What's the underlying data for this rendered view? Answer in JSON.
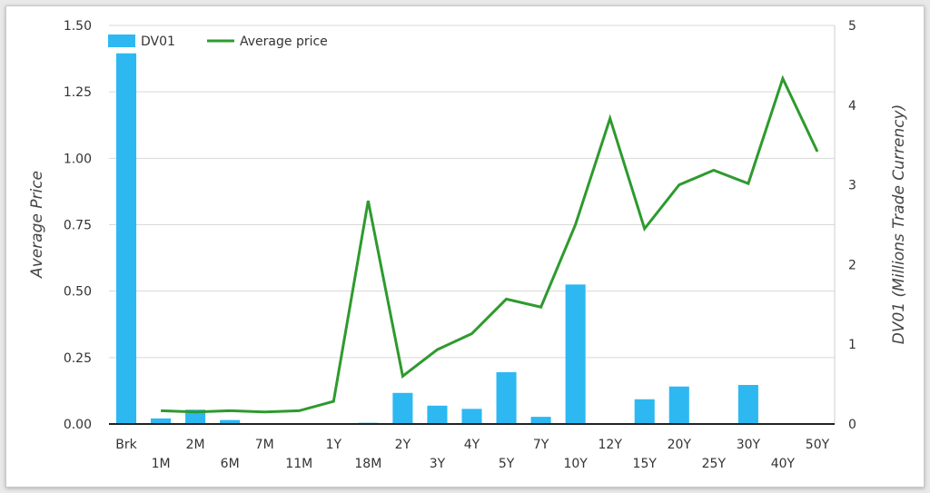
{
  "chart_data": {
    "type": "bar",
    "categories": [
      "Brk",
      "1M",
      "2M",
      "6M",
      "7M",
      "11M",
      "1Y",
      "18M",
      "2Y",
      "3Y",
      "4Y",
      "5Y",
      "7Y",
      "10Y",
      "12Y",
      "15Y",
      "20Y",
      "25Y",
      "30Y",
      "40Y",
      "50Y"
    ],
    "series": [
      {
        "name": "DV01",
        "type": "bar",
        "axis": "right",
        "color": "#2db8f1",
        "values": [
          4.65,
          0.07,
          0.18,
          0.05,
          0.0,
          0.005,
          0.0,
          0.015,
          0.39,
          0.23,
          0.19,
          0.65,
          0.09,
          1.75,
          0.0,
          0.31,
          0.47,
          0.0,
          0.49,
          0.0,
          0.0
        ]
      },
      {
        "name": "Average price",
        "type": "line",
        "axis": "left",
        "color": "#2e9a2e",
        "values": [
          null,
          0.05,
          0.045,
          0.05,
          0.045,
          0.05,
          0.085,
          0.84,
          0.18,
          0.28,
          0.34,
          0.47,
          0.44,
          0.75,
          1.15,
          0.735,
          0.9,
          0.955,
          0.905,
          1.3,
          1.025
        ]
      }
    ],
    "ylabel": "Average Price",
    "y2label": "DV01 (Millions Trade Currency)",
    "ylim": [
      0,
      1.5
    ],
    "y2lim": [
      0,
      5
    ],
    "yticks": [
      "0.00",
      "0.25",
      "0.50",
      "0.75",
      "1.00",
      "1.25",
      "1.50"
    ],
    "y2ticks": [
      "0",
      "1",
      "2",
      "3",
      "4",
      "5"
    ],
    "grid": true,
    "legend_position": "top-left"
  }
}
